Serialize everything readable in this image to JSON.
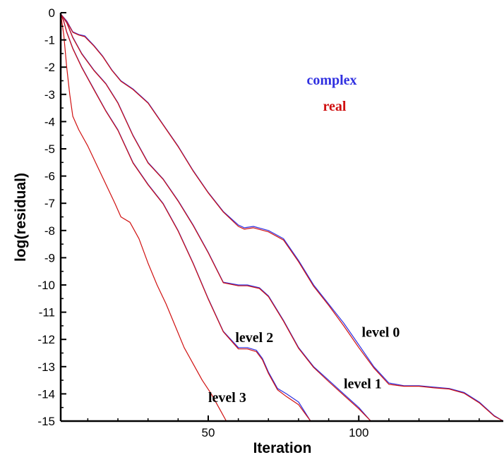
{
  "chart_data": {
    "type": "line",
    "xlabel": "Iteration",
    "ylabel": "log(residual)",
    "xlim": [
      1,
      148
    ],
    "ylim": [
      -15,
      0
    ],
    "x_ticks": [
      50,
      100
    ],
    "y_ticks": [
      0,
      -1,
      -2,
      -3,
      -4,
      -5,
      -6,
      -7,
      -8,
      -9,
      -10,
      -11,
      -12,
      -13,
      -14,
      -15
    ],
    "grid": false,
    "legend": {
      "placement": "top-right",
      "entries": [
        {
          "label": "complex",
          "color": "#3030e0"
        },
        {
          "label": "real",
          "color": "#d01010"
        }
      ]
    },
    "annotations": [
      {
        "text": "level 0",
        "x": 101,
        "y": -11.9
      },
      {
        "text": "level 1",
        "x": 95,
        "y": -13.8
      },
      {
        "text": "level 2",
        "x": 59,
        "y": -12.1
      },
      {
        "text": "level 3",
        "x": 50,
        "y": -14.3
      }
    ],
    "series": [
      {
        "group": "level 0",
        "kind": "complex",
        "color": "#3030e0",
        "x": [
          1,
          3,
          5,
          7,
          9,
          12,
          15,
          18,
          21,
          25,
          30,
          35,
          40,
          45,
          50,
          55,
          60,
          62,
          65,
          70,
          75,
          80,
          85,
          90,
          95,
          100,
          105,
          110,
          115,
          120,
          125,
          130,
          135,
          140,
          145,
          148
        ],
        "y": [
          -0.05,
          -0.3,
          -0.7,
          -0.8,
          -0.85,
          -1.2,
          -1.6,
          -2.1,
          -2.5,
          -2.8,
          -3.3,
          -4.1,
          -4.9,
          -5.8,
          -6.6,
          -7.3,
          -7.8,
          -7.9,
          -7.85,
          -8.0,
          -8.3,
          -9.1,
          -10.0,
          -10.7,
          -11.4,
          -12.2,
          -13.0,
          -13.6,
          -13.7,
          -13.7,
          -13.75,
          -13.8,
          -13.95,
          -14.3,
          -14.8,
          -15.0
        ]
      },
      {
        "group": "level 0",
        "kind": "real",
        "color": "#d01010",
        "x": [
          1,
          3,
          5,
          7,
          9,
          12,
          15,
          18,
          21,
          25,
          30,
          35,
          40,
          45,
          50,
          55,
          60,
          62,
          65,
          70,
          75,
          80,
          85,
          90,
          95,
          100,
          105,
          110,
          115,
          120,
          125,
          130,
          135,
          140,
          145,
          148
        ],
        "y": [
          -0.05,
          -0.32,
          -0.72,
          -0.82,
          -0.88,
          -1.22,
          -1.62,
          -2.12,
          -2.52,
          -2.82,
          -3.32,
          -4.12,
          -4.92,
          -5.82,
          -6.62,
          -7.32,
          -7.85,
          -7.95,
          -7.9,
          -8.05,
          -8.35,
          -9.15,
          -10.05,
          -10.75,
          -11.5,
          -12.3,
          -13.05,
          -13.65,
          -13.72,
          -13.72,
          -13.78,
          -13.82,
          -13.98,
          -14.33,
          -14.82,
          -15.0
        ]
      },
      {
        "group": "level 1",
        "kind": "complex",
        "color": "#3030e0",
        "x": [
          1,
          3,
          5,
          8,
          12,
          16,
          20,
          25,
          30,
          35,
          40,
          45,
          50,
          55,
          60,
          63,
          67,
          70,
          75,
          80,
          85,
          90,
          95,
          100,
          104
        ],
        "y": [
          -0.05,
          -0.35,
          -0.9,
          -1.5,
          -2.1,
          -2.6,
          -3.3,
          -4.5,
          -5.5,
          -6.1,
          -6.9,
          -7.8,
          -8.8,
          -9.9,
          -10.0,
          -10.0,
          -10.1,
          -10.4,
          -11.3,
          -12.3,
          -13.0,
          -13.5,
          -14.0,
          -14.5,
          -15.0
        ]
      },
      {
        "group": "level 1",
        "kind": "real",
        "color": "#d01010",
        "x": [
          1,
          3,
          5,
          8,
          12,
          16,
          20,
          25,
          30,
          35,
          40,
          45,
          50,
          55,
          60,
          63,
          67,
          70,
          75,
          80,
          85,
          90,
          95,
          100,
          104
        ],
        "y": [
          -0.05,
          -0.37,
          -0.92,
          -1.52,
          -2.12,
          -2.62,
          -3.32,
          -4.52,
          -5.52,
          -6.12,
          -6.92,
          -7.82,
          -8.82,
          -9.92,
          -10.03,
          -10.03,
          -10.13,
          -10.43,
          -11.33,
          -12.33,
          -13.03,
          -13.55,
          -14.05,
          -14.55,
          -15.0
        ]
      },
      {
        "group": "level 2",
        "kind": "complex",
        "color": "#3030e0",
        "x": [
          1,
          2,
          3,
          5,
          8,
          12,
          16,
          20,
          25,
          30,
          35,
          40,
          45,
          50,
          55,
          60,
          63,
          66,
          68,
          70,
          73,
          76,
          80,
          84
        ],
        "y": [
          -0.05,
          -0.3,
          -0.7,
          -1.3,
          -2.0,
          -2.8,
          -3.6,
          -4.3,
          -5.5,
          -6.3,
          -7.0,
          -8.0,
          -9.2,
          -10.5,
          -11.7,
          -12.3,
          -12.3,
          -12.4,
          -12.7,
          -13.2,
          -13.8,
          -14.0,
          -14.3,
          -15.0
        ]
      },
      {
        "group": "level 2",
        "kind": "real",
        "color": "#d01010",
        "x": [
          1,
          2,
          3,
          5,
          8,
          12,
          16,
          20,
          25,
          30,
          35,
          40,
          45,
          50,
          55,
          60,
          63,
          66,
          68,
          70,
          73,
          76,
          80,
          84
        ],
        "y": [
          -0.05,
          -0.32,
          -0.72,
          -1.32,
          -2.02,
          -2.82,
          -3.62,
          -4.32,
          -5.52,
          -6.32,
          -7.02,
          -8.02,
          -9.22,
          -10.52,
          -11.72,
          -12.35,
          -12.35,
          -12.45,
          -12.75,
          -13.25,
          -13.85,
          -14.1,
          -14.4,
          -15.0
        ]
      },
      {
        "group": "level 3",
        "kind": "real",
        "color": "#d01010",
        "x": [
          1,
          2,
          3,
          4,
          5,
          7,
          10,
          13,
          16,
          19,
          21,
          24,
          27,
          30,
          33,
          36,
          39,
          42,
          45,
          48,
          51,
          54,
          56
        ],
        "y": [
          -0.05,
          -0.8,
          -2.0,
          -3.0,
          -3.8,
          -4.3,
          -4.9,
          -5.6,
          -6.3,
          -7.0,
          -7.5,
          -7.7,
          -8.3,
          -9.2,
          -10.0,
          -10.7,
          -11.5,
          -12.3,
          -12.9,
          -13.5,
          -14.0,
          -14.6,
          -15.0
        ]
      }
    ]
  }
}
